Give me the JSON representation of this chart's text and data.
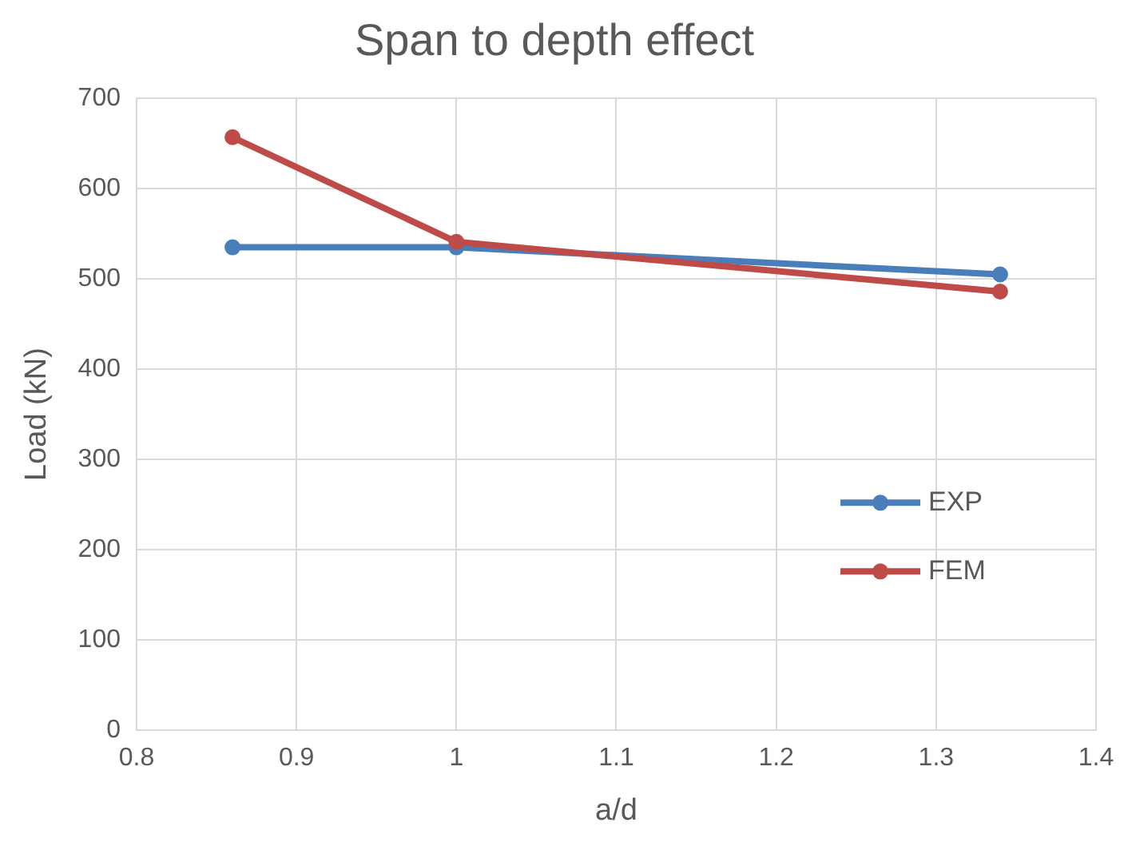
{
  "chart_data": {
    "type": "line",
    "title": "Span to depth effect",
    "xlabel": "a/d",
    "ylabel": "Load (kN)",
    "x": [
      0.86,
      1,
      1.34
    ],
    "series": [
      {
        "name": "EXP",
        "color": "#4a7ebb",
        "values": [
          535,
          535,
          505
        ]
      },
      {
        "name": "FEM",
        "color": "#be4b48",
        "values": [
          657,
          541,
          486
        ]
      }
    ],
    "xlim": [
      0.8,
      1.4
    ],
    "xticks": [
      0.8,
      0.9,
      1,
      1.1,
      1.2,
      1.3,
      1.4
    ],
    "ylim": [
      0,
      700
    ],
    "yticks": [
      0,
      100,
      200,
      300,
      400,
      500,
      600,
      700
    ],
    "grid": true,
    "legend": "right",
    "marker": "circle",
    "line_style": "solid"
  }
}
